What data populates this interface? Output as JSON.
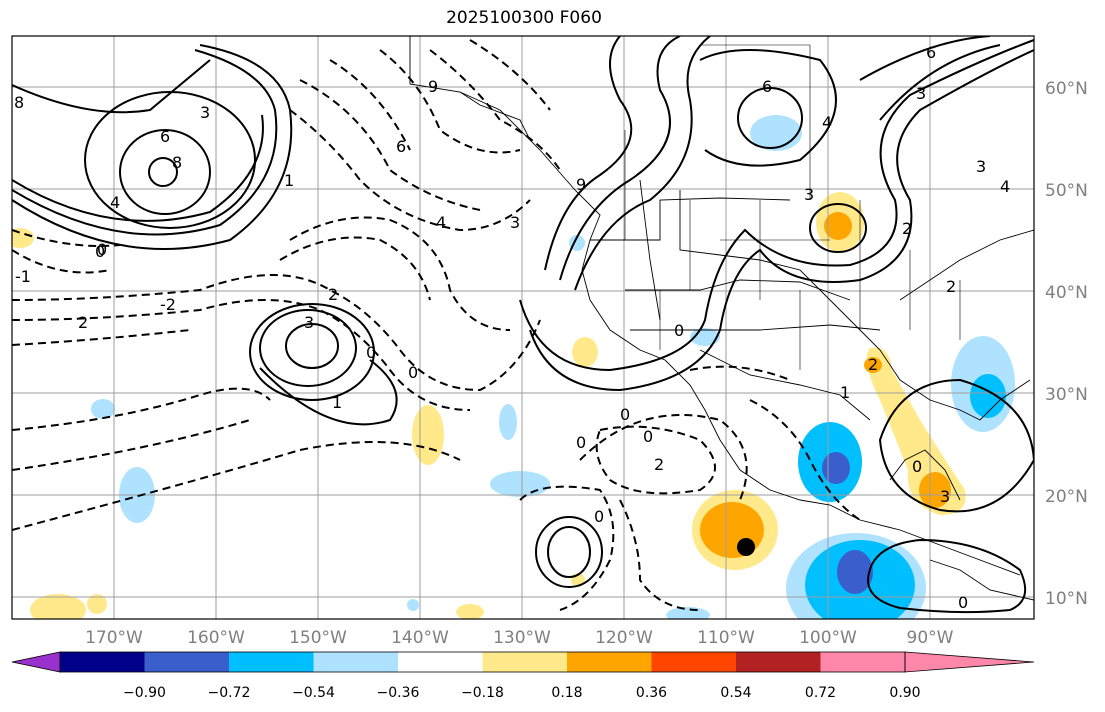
{
  "title": "2025100300 F060",
  "lat_labels": [
    "60°N",
    "50°N",
    "40°N",
    "30°N",
    "20°N",
    "10°N"
  ],
  "lon_labels": [
    "170°W",
    "160°W",
    "150°W",
    "140°W",
    "130°W",
    "120°W",
    "110°W",
    "100°W",
    "90°W"
  ],
  "colorbar": {
    "ticks": [
      "−0.90",
      "−0.72",
      "−0.54",
      "−0.36",
      "−0.18",
      "0.18",
      "0.36",
      "0.54",
      "0.72",
      "0.90"
    ],
    "colors": [
      "#9932cc",
      "#00008b",
      "#3a5fcd",
      "#00bfff",
      "#aee2ff",
      "#ffffff",
      "#ffe98a",
      "#ffa500",
      "#ff4500",
      "#b22222",
      "#ff88aa"
    ]
  },
  "contour_labels": [
    "8",
    "3",
    "6",
    "8",
    "4",
    "0",
    "2",
    "-1",
    "0",
    "-2",
    "2",
    "3",
    "1",
    "1",
    "0",
    "0",
    "6",
    "4",
    "3",
    "9",
    "0",
    "2",
    "0",
    "0",
    "0",
    "0",
    "6",
    "4",
    "3",
    "3",
    "9",
    "2",
    "6",
    "3",
    "2",
    "4",
    "3",
    "0",
    "1",
    "2",
    "0"
  ],
  "markers": [
    {
      "name": "storm-center-dot",
      "color": "#000000"
    }
  ]
}
